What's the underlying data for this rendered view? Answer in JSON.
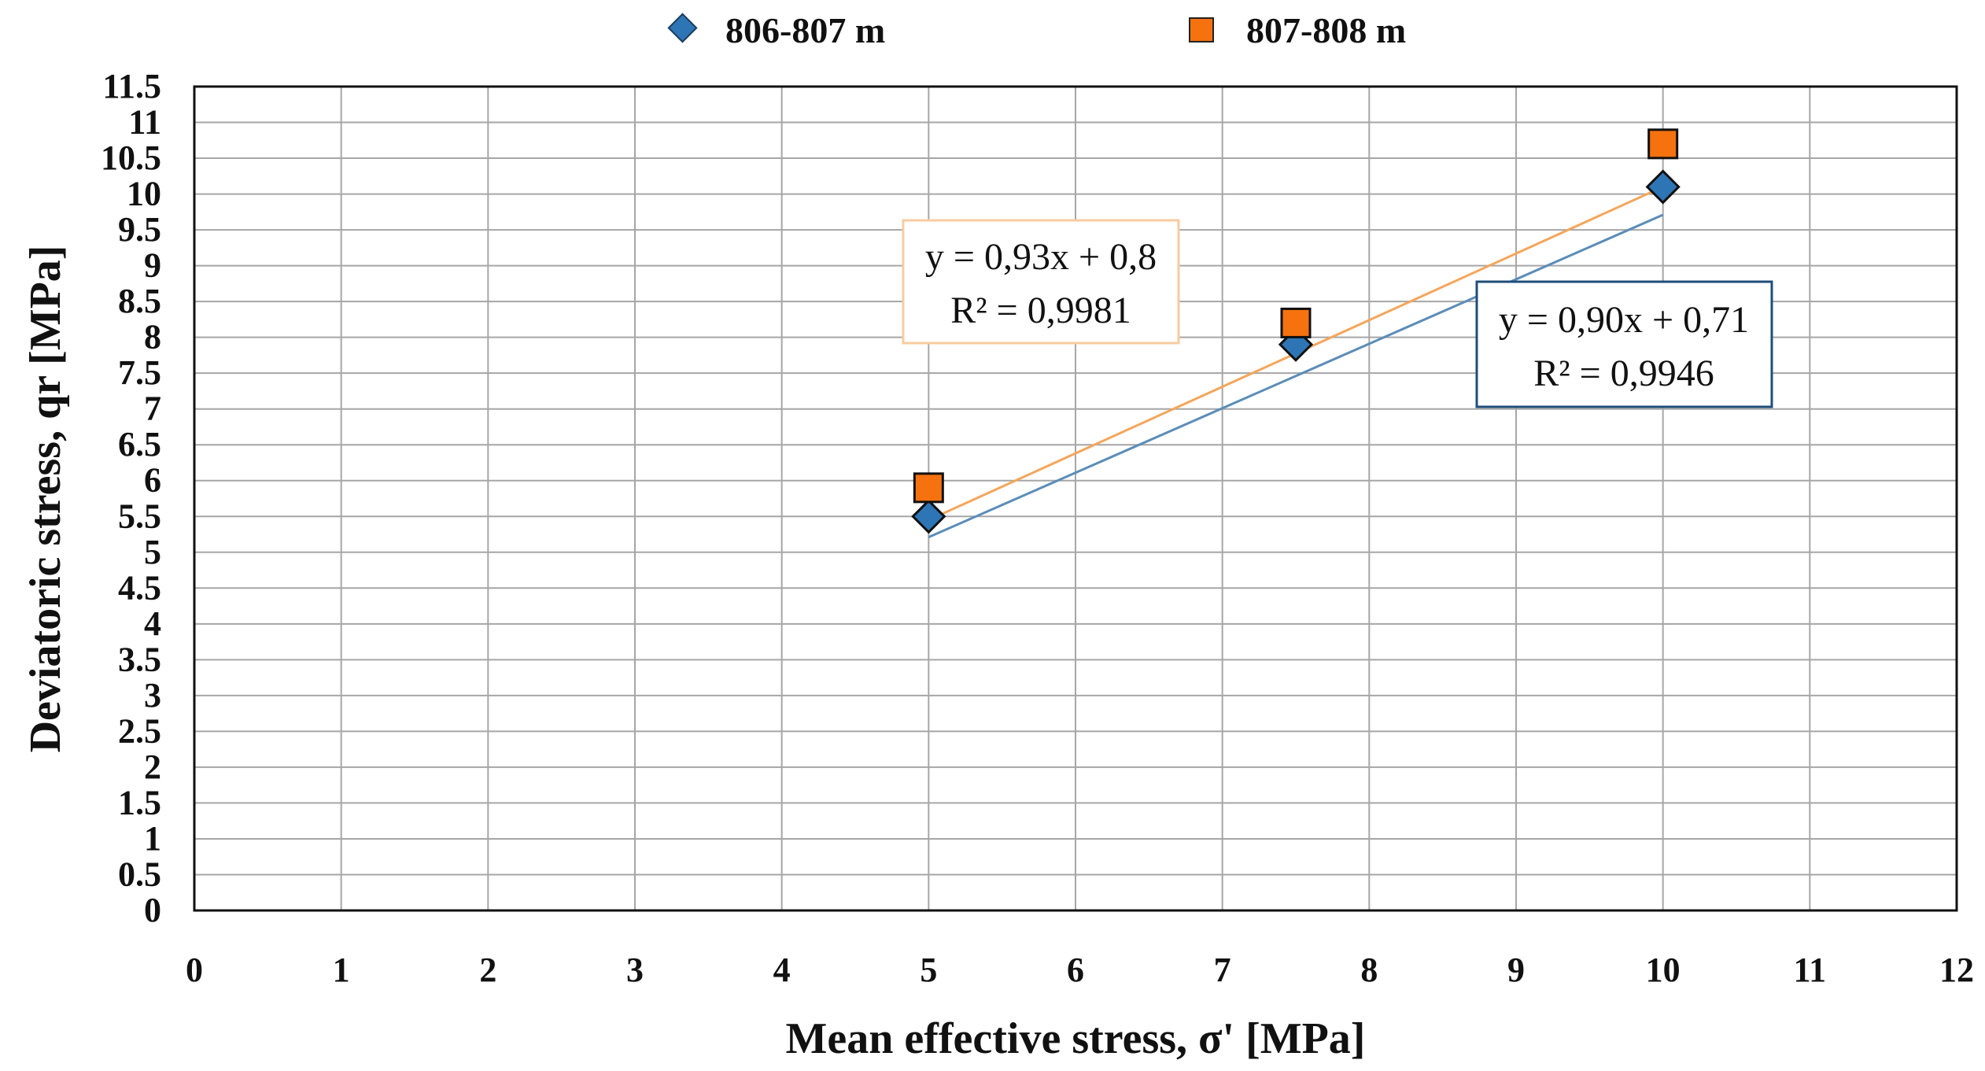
{
  "chart_data": {
    "type": "scatter",
    "title": "",
    "xlabel": "Mean effective stress, σ' [MPa]",
    "ylabel": "Deviatoric stress, qr [MPa]",
    "xlim": [
      0,
      12
    ],
    "ylim": [
      0,
      11.5
    ],
    "x_ticks": [
      "0",
      "1",
      "2",
      "3",
      "4",
      "5",
      "6",
      "7",
      "8",
      "9",
      "10",
      "11",
      "12"
    ],
    "y_ticks": [
      "0",
      "0.5",
      "1",
      "1.5",
      "2",
      "2.5",
      "3",
      "3.5",
      "4",
      "4.5",
      "5",
      "5.5",
      "6",
      "6.5",
      "7",
      "7.5",
      "8",
      "8.5",
      "9",
      "9.5",
      "10",
      "10.5",
      "11",
      "11.5"
    ],
    "grid": true,
    "legend_position": "top-center",
    "series": [
      {
        "name": "806-807 m",
        "marker": "diamond",
        "color": "#2E75B6",
        "trend_color": "#5B8DB8",
        "x": [
          5,
          7.5,
          10
        ],
        "y": [
          5.5,
          7.9,
          10.1
        ],
        "trendline": {
          "slope": 0.9,
          "intercept": 0.71,
          "equation": "y = 0,90x + 0,71",
          "r2": "R² = 0,9946",
          "box_color": "#1F4E79"
        }
      },
      {
        "name": "807-808 m",
        "marker": "square",
        "color": "#F5720F",
        "trend_color": "#F4A65B",
        "x": [
          5,
          7.5,
          10
        ],
        "y": [
          5.9,
          8.2,
          10.7
        ],
        "trendline": {
          "slope": 0.93,
          "intercept": 0.8,
          "equation": "y = 0,93x + 0,8",
          "r2": "R² = 0,9981",
          "box_color": "#F8CBA0"
        }
      }
    ]
  }
}
